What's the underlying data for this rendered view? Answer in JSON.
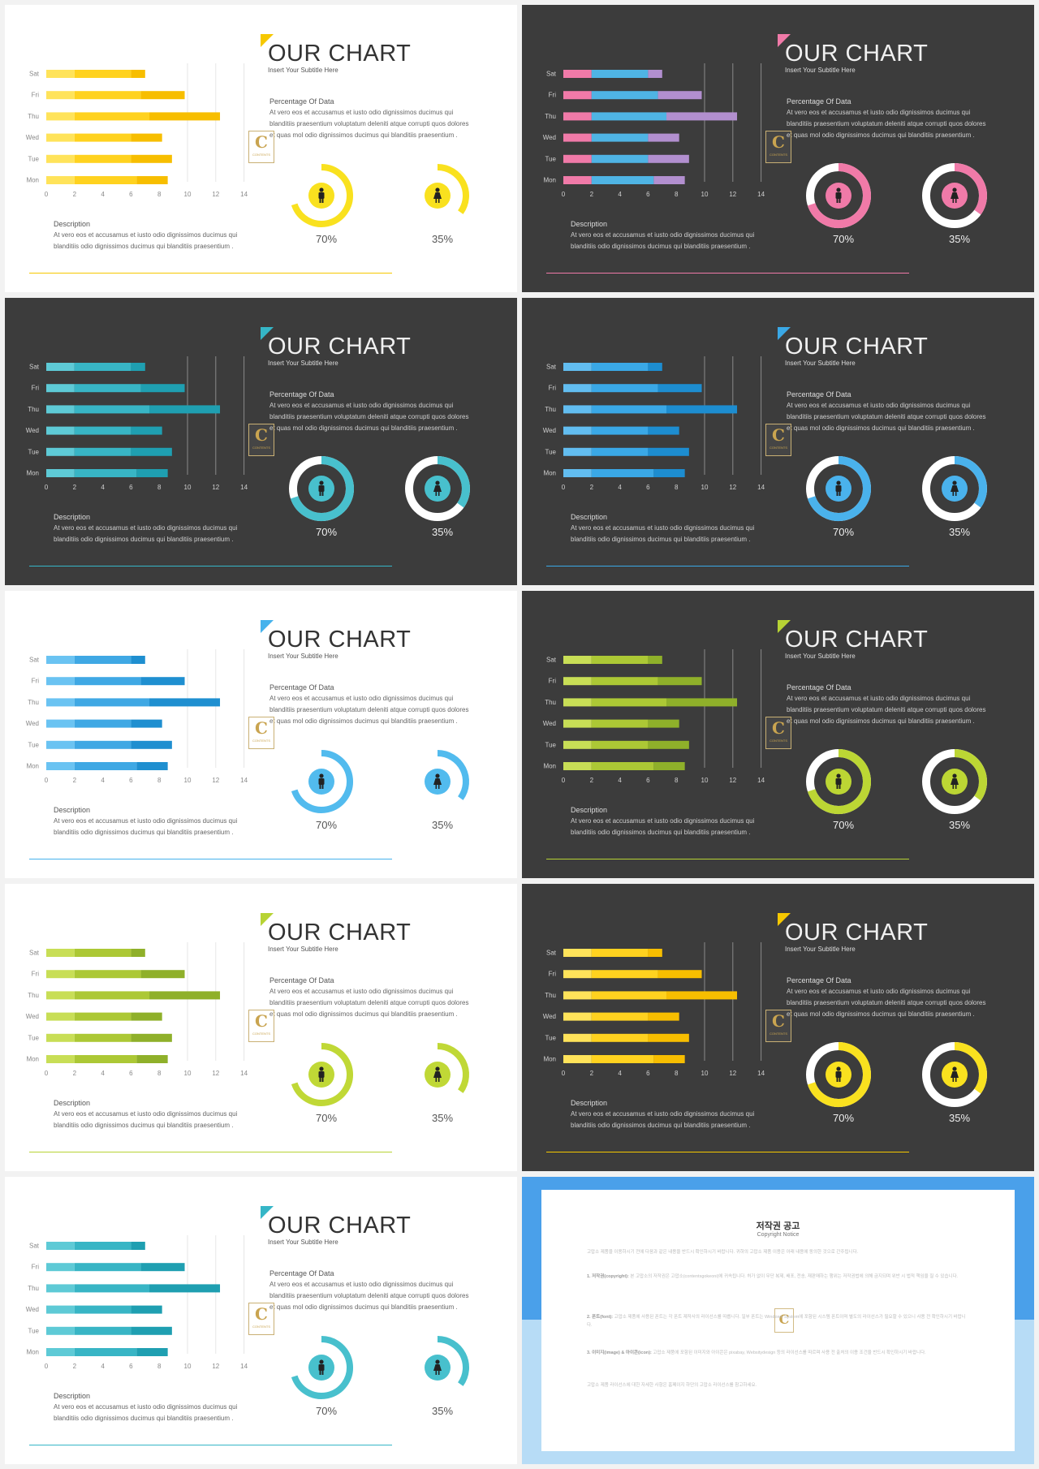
{
  "slides": [
    {
      "theme": "light",
      "accent": "#f6c800",
      "bar_colors": [
        "#ffe35a",
        "#ffd21f",
        "#f7be00"
      ],
      "ring_style": "arc",
      "ring_color": "#f9e11f",
      "ring_inner": "#f9e11f"
    },
    {
      "theme": "dark",
      "accent": "#f07aa8",
      "bar_colors": [
        "#f07aa8",
        "#4fb4e4",
        "#b28fcf"
      ],
      "ring_style": "full",
      "ring_color": "#f07aa8",
      "ring_inner": "#f07aa8"
    },
    {
      "theme": "dark",
      "accent": "#35b6c7",
      "bar_colors": [
        "#5ecad6",
        "#38b5c5",
        "#1f9fb1"
      ],
      "ring_style": "full",
      "ring_color": "#48c0cd",
      "ring_inner": "#48c0cd"
    },
    {
      "theme": "dark",
      "accent": "#3aa8e6",
      "bar_colors": [
        "#62bdf0",
        "#3aa8e6",
        "#1d8dd0"
      ],
      "ring_style": "full",
      "ring_color": "#4ab2ec",
      "ring_inner": "#4ab2ec"
    },
    {
      "theme": "light",
      "accent": "#45b2ec",
      "bar_colors": [
        "#6ac3f2",
        "#3fa8e4",
        "#1f8fd0"
      ],
      "ring_style": "arc",
      "ring_color": "#52bbee",
      "ring_inner": "#52bbee"
    },
    {
      "theme": "dark",
      "accent": "#b7d334",
      "bar_colors": [
        "#c8de56",
        "#acc835",
        "#8fb02a"
      ],
      "ring_style": "full",
      "ring_color": "#bcd634",
      "ring_inner": "#bcd634"
    },
    {
      "theme": "light",
      "accent": "#b7d334",
      "bar_colors": [
        "#c8de56",
        "#acc835",
        "#8fb02a"
      ],
      "ring_style": "arc",
      "ring_color": "#c0d836",
      "ring_inner": "#c0d836"
    },
    {
      "theme": "dark",
      "accent": "#f6c800",
      "bar_colors": [
        "#ffe35a",
        "#ffd21f",
        "#f7be00"
      ],
      "ring_style": "full",
      "ring_color": "#f9e11f",
      "ring_inner": "#f9e11f"
    },
    {
      "theme": "light",
      "accent": "#35b6c7",
      "bar_colors": [
        "#5ecad6",
        "#38b5c5",
        "#1f9fb1"
      ],
      "ring_style": "arc",
      "ring_color": "#48c0cd",
      "ring_inner": "#48c0cd"
    }
  ],
  "text": {
    "title": "OUR CHART",
    "subtitle": "Insert Your Subtitle Here",
    "pct_label": "Percentage  Of  Data",
    "pct_body": "At vero eos et accusamus et iusto odio dignissimos ducimus qui blanditiis praesentium voluptatum deleniti atque corrupti quos dolores et quas mol odio dignissimos ducimus qui blanditiis praesentium .",
    "desc_label": "Description",
    "desc_body": "At vero eos et accusamus et iusto odio dignissimos ducimus qui blanditiis odio dignissimos ducimus qui blanditiis praesentium .",
    "donut1": "70%",
    "donut2": "35%",
    "logo_letter": "C",
    "logo_text": "CONTENTS"
  },
  "chart_data": {
    "type": "bar",
    "orientation": "horizontal",
    "stacked": true,
    "categories": [
      "Sat",
      "Fri",
      "Thu",
      "Wed",
      "Tue",
      "Mon"
    ],
    "series": [
      {
        "values": [
          2.0,
          2.0,
          2.0,
          2.0,
          2.0,
          2.0
        ]
      },
      {
        "values": [
          4.0,
          4.7,
          5.3,
          4.0,
          4.0,
          4.4
        ]
      },
      {
        "values": [
          1.0,
          3.1,
          5.0,
          2.2,
          2.9,
          2.2
        ]
      }
    ],
    "xticks": [
      0,
      2,
      4,
      6,
      8,
      10,
      12,
      14
    ],
    "xlim": [
      0,
      14
    ],
    "donuts": [
      0.7,
      0.35
    ]
  },
  "copyright": {
    "title": "저작권 공고",
    "subtitle": "Copyright Notice",
    "intro": "고맙소 제품을 이용하시기 전에 다음과 같은 내용을 반드시 확인하시기 바랍니다. 귀하의 고맙소 제품 이용은 아래 내용에 동의한 것으로 간주됩니다.",
    "p1_head": "1. 저작권(copyright):",
    "p1": "본 고맙소의 저작권은 고맙소(contentsgokeoni)에 귀속됩니다. 허가 없이 무단 복제, 배포, 전송, 재판매하는 행위는 저작권법에 의해 금지되며 위반 시 법적 책임을 질 수 있습니다.",
    "p2_head": "2. 폰트(font):",
    "p2": "고맙소 제품에 사용된 폰트는 각 폰트 제작사의 라이선스를 따릅니다. 일부 폰트는 Windows System에 포함된 시스템 폰트이며 별도의 라이선스가 필요할 수 있으니 사용 전 확인하시기 바랍니다.",
    "p3_head": "3. 이미지(image) & 아이콘(icon):",
    "p3": "고맙소 제품에 포함된 이미지와 아이콘은 pixabay, Websitydesign 등의 라이선스를 따르며 사용 전 출처의 이용 조건을 반드시 확인하시기 바랍니다.",
    "outro": "고맙소 제품 라이선스에 대한 자세한 사항은 홈페이지 하단의 고맙소 라이선스를 참고하세요."
  }
}
